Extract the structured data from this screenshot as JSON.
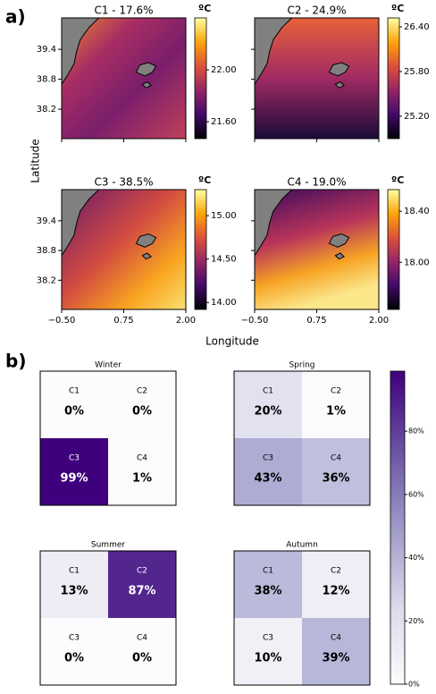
{
  "panel_a": {
    "label": "a)",
    "xlabel": "Longitude",
    "ylabel": "Latitude",
    "xlim": [
      -0.5,
      2.0
    ],
    "xticks": [
      {
        "value": -0.5,
        "label": "−0.50"
      },
      0.75,
      {
        "value": 2,
        "label": "2.00"
      }
    ],
    "ylim": [
      37.61,
      40.03
    ],
    "yticks": [
      38.2,
      38.8,
      39.4
    ],
    "maps": [
      {
        "title": "C1 - 17.6%",
        "unit": "ºC",
        "clim": [
          21.47,
          22.4
        ],
        "cticks": [
          {
            "value": 21.6,
            "label": "21.60"
          },
          {
            "value": 22,
            "label": "22.00"
          }
        ]
      },
      {
        "title": "C2 - 24.9%",
        "unit": "ºC",
        "clim": [
          24.9,
          26.52
        ],
        "cticks": [
          {
            "value": 25.2,
            "label": "25.20"
          },
          {
            "value": 25.8,
            "label": "25.80"
          },
          {
            "value": 26.4,
            "label": "26.40"
          }
        ]
      },
      {
        "title": "C3 - 38.5%",
        "unit": "ºC",
        "clim": [
          13.92,
          15.3
        ],
        "cticks": [
          {
            "value": 14,
            "label": "14.00"
          },
          {
            "value": 14.5,
            "label": "14.50"
          },
          {
            "value": 15,
            "label": "15.00"
          }
        ]
      },
      {
        "title": "C4 - 19.0%",
        "unit": "ºC",
        "clim": [
          17.63,
          18.57
        ],
        "cticks": [
          {
            "value": 18,
            "label": "18.00"
          },
          {
            "value": 18.4,
            "label": "18.40"
          }
        ]
      }
    ]
  },
  "chart_data": {
    "type": "heatmap",
    "label": "b)",
    "clim": [
      0,
      99
    ],
    "cticks": [
      {
        "value": 0,
        "label": "0%"
      },
      {
        "value": 20,
        "label": "20%"
      },
      {
        "value": 40,
        "label": "40%"
      },
      {
        "value": 60,
        "label": "60%"
      },
      {
        "value": 80,
        "label": "80%"
      }
    ],
    "panels": [
      {
        "title": "Winter",
        "cells": [
          "C1",
          "C2",
          "C3",
          "C4"
        ],
        "values": [
          0,
          0,
          99,
          1
        ],
        "value_labels": [
          "0%",
          "0%",
          "99%",
          "1%"
        ]
      },
      {
        "title": "Spring",
        "cells": [
          "C1",
          "C2",
          "C3",
          "C4"
        ],
        "values": [
          20,
          1,
          43,
          36
        ],
        "value_labels": [
          "20%",
          "1%",
          "43%",
          "36%"
        ]
      },
      {
        "title": "Summer",
        "cells": [
          "C1",
          "C2",
          "C3",
          "C4"
        ],
        "values": [
          13,
          87,
          0,
          0
        ],
        "value_labels": [
          "13%",
          "87%",
          "0%",
          "0%"
        ]
      },
      {
        "title": "Autumn",
        "cells": [
          "C1",
          "C2",
          "C3",
          "C4"
        ],
        "values": [
          38,
          12,
          10,
          39
        ],
        "value_labels": [
          "38%",
          "12%",
          "10%",
          "39%"
        ]
      }
    ]
  }
}
